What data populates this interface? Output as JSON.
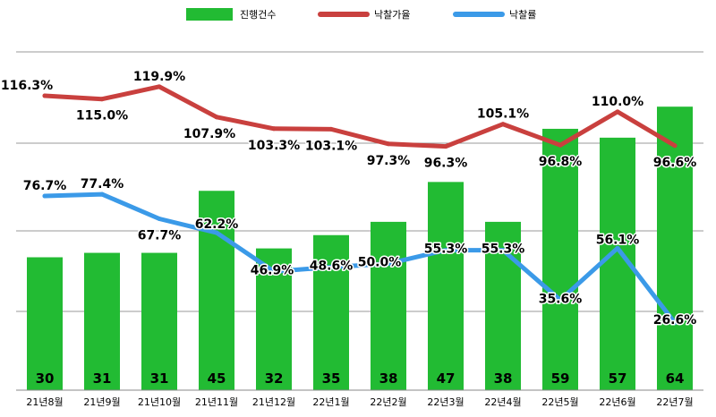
{
  "chart_data": {
    "type": "bar",
    "categories": [
      "21년8월",
      "21년9월",
      "21년10월",
      "21년11월",
      "21년12월",
      "22년1월",
      "22년2월",
      "22년3월",
      "22년4월",
      "22년5월",
      "22년6월",
      "22년7월"
    ],
    "series": [
      {
        "name": "진행건수",
        "type": "bar",
        "axis": "left",
        "color": "#22bb33",
        "values": [
          30,
          31,
          31,
          45,
          32,
          35,
          38,
          47,
          38,
          59,
          57,
          64
        ],
        "labels": [
          "30",
          "31",
          "31",
          "45",
          "32",
          "35",
          "38",
          "47",
          "38",
          "59",
          "57",
          "64"
        ]
      },
      {
        "name": "낙찰가율",
        "type": "line",
        "axis": "right",
        "color": "#c9403e",
        "values": [
          116.3,
          115.0,
          119.9,
          107.9,
          103.3,
          103.1,
          97.3,
          96.3,
          105.1,
          96.8,
          110.0,
          96.6
        ],
        "labels": [
          "116.3%",
          "115.0%",
          "119.9%",
          "107.9%",
          "103.3%",
          "103.1%",
          "97.3%",
          "96.3%",
          "105.1%",
          "96.8%",
          "110.0%",
          "96.6%"
        ]
      },
      {
        "name": "낙찰률",
        "type": "line",
        "axis": "right",
        "color": "#3b9ae8",
        "values": [
          76.7,
          77.4,
          67.7,
          62.2,
          46.9,
          48.6,
          50.0,
          55.3,
          55.3,
          35.6,
          56.1,
          26.6
        ],
        "labels": [
          "76.7%",
          "77.4%",
          "67.7%",
          "62.2%",
          "46.9%",
          "48.6%",
          "50.0%",
          "55.3%",
          "55.3%",
          "35.6%",
          "56.1%",
          "26.6%"
        ]
      }
    ],
    "legend_position": "top-center",
    "grid": true,
    "bar_ylim": [
      0,
      80
    ],
    "line_ylim": [
      0,
      140
    ]
  }
}
